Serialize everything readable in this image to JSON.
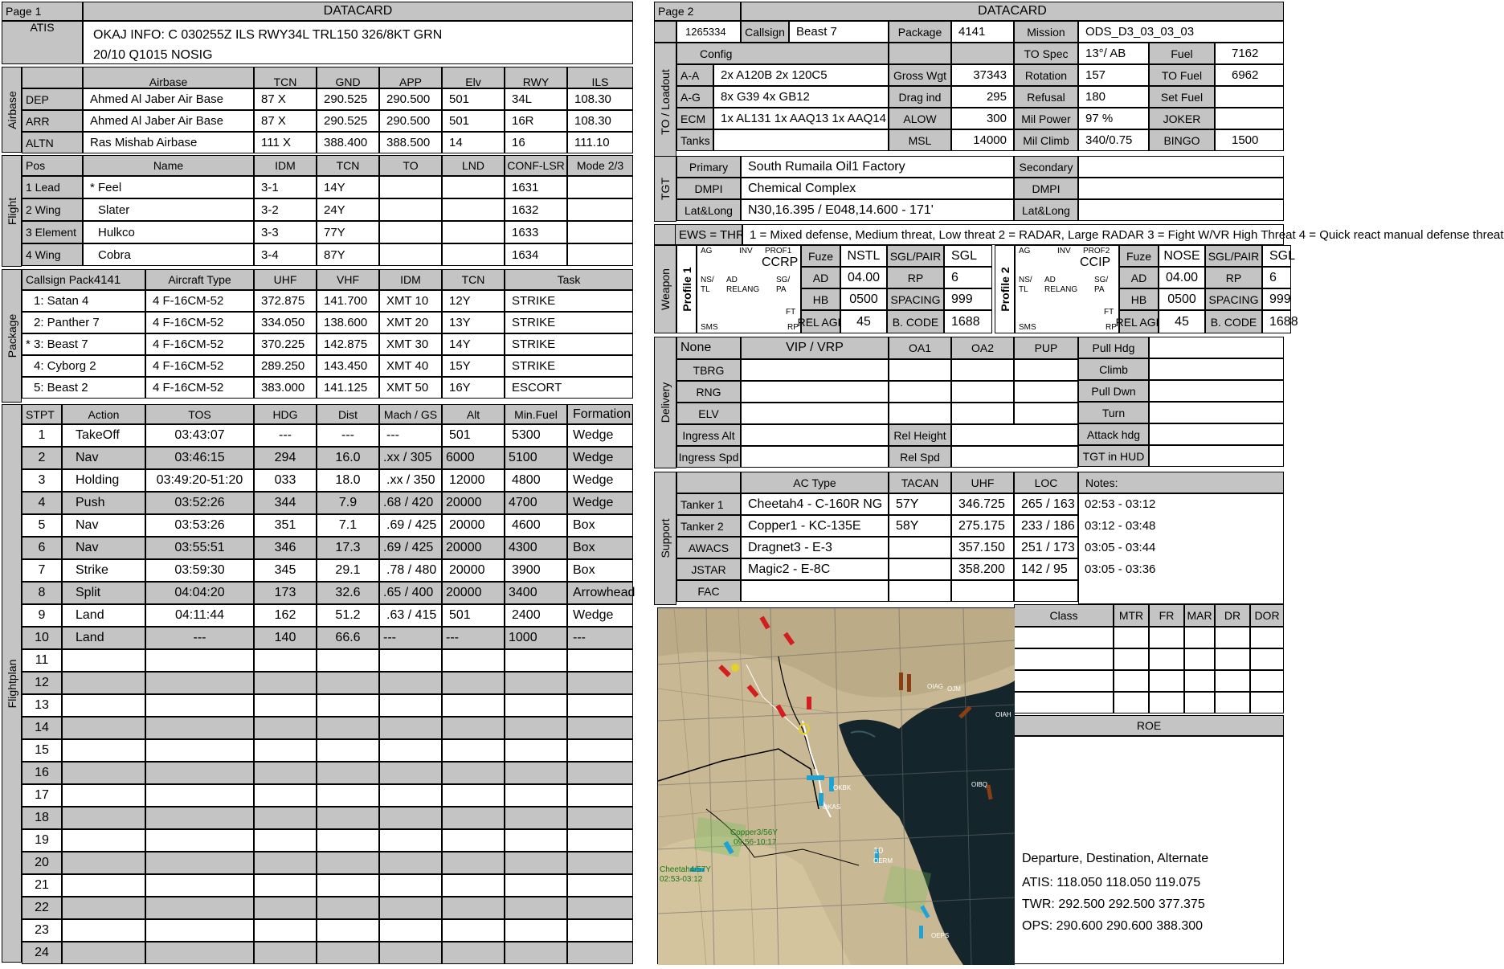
{
  "page1": {
    "page_label": "Page 1",
    "title": "DATACARD",
    "atis": {
      "label": "ATIS",
      "text": "OKAJ INFO: C 030255Z ILS RWY34L TRL150 326/8KT GRN\n20/10 Q1015  NOSIG"
    },
    "airbase": {
      "section_label": "Airbase",
      "headers": [
        "Airbase",
        "TCN",
        "GND",
        "APP",
        "Elv",
        "RWY",
        "ILS"
      ],
      "rows": [
        [
          "DEP",
          "Ahmed Al Jaber Air Base",
          "87 X",
          "290.525",
          "290.500",
          "501",
          "34L",
          "108.30"
        ],
        [
          "ARR",
          "Ahmed Al Jaber Air Base",
          "87 X",
          "290.525",
          "290.500",
          "501",
          "16R",
          "108.30"
        ],
        [
          "ALTN",
          "Ras Mishab Airbase",
          "111 X",
          "388.400",
          "388.500",
          "14",
          "16",
          "111.10"
        ]
      ]
    },
    "flight": {
      "section_label": "Flight",
      "headers": [
        "Pos",
        "Name",
        "IDM",
        "TCN",
        "TO",
        "LND",
        "CONF-LSR",
        "Mode 2/3"
      ],
      "rows": [
        [
          "1 Lead",
          "* Feel",
          "3-1",
          "14Y",
          "",
          "",
          "1631",
          ""
        ],
        [
          "2 Wing",
          "Slater",
          "3-2",
          "24Y",
          "",
          "",
          "1632",
          ""
        ],
        [
          "3 Element",
          "Hulkco",
          "3-3",
          "77Y",
          "",
          "",
          "1633",
          ""
        ],
        [
          "4 Wing",
          "Cobra",
          "3-4",
          "87Y",
          "",
          "",
          "1634",
          ""
        ]
      ]
    },
    "package": {
      "section_label": "Package",
      "callsign_pack_label": "Callsign Pack",
      "callsign_pack_value": "4141",
      "headers": [
        "Aircraft Type",
        "UHF",
        "VHF",
        "IDM",
        "TCN",
        "Task"
      ],
      "rows": [
        [
          "1: Satan 4",
          "4 F-16CM-52",
          "372.875",
          "141.700",
          "XMT 10",
          "12Y",
          "STRIKE"
        ],
        [
          "2: Panther 7",
          "4 F-16CM-52",
          "334.050",
          "138.600",
          "XMT 20",
          "13Y",
          "STRIKE"
        ],
        [
          "* 3: Beast 7",
          "4 F-16CM-52",
          "370.225",
          "142.875",
          "XMT 30",
          "14Y",
          "STRIKE"
        ],
        [
          "4: Cyborg 2",
          "4 F-16CM-52",
          "289.250",
          "143.450",
          "XMT 40",
          "15Y",
          "STRIKE"
        ],
        [
          "5: Beast 2",
          "4 F-16CM-52",
          "383.000",
          "141.125",
          "XMT 50",
          "16Y",
          "ESCORT"
        ]
      ]
    },
    "flightplan": {
      "section_label": "Flightplan",
      "headers": [
        "STPT",
        "Action",
        "TOS",
        "HDG",
        "Dist",
        "Mach / GS",
        "Alt",
        "Min.Fuel",
        "Formation"
      ],
      "rows": [
        [
          "1",
          "TakeOff",
          "03:43:07",
          "---",
          "---",
          "---",
          "501",
          "5300",
          "Wedge"
        ],
        [
          "2",
          "Nav",
          "03:46:15",
          "294",
          "16.0",
          ".xx / 305",
          "6000",
          "5100",
          "Wedge"
        ],
        [
          "3",
          "Holding",
          "03:49:20-51:20",
          "033",
          "18.0",
          ".xx / 350",
          "12000",
          "4800",
          "Wedge"
        ],
        [
          "4",
          "Push",
          "03:52:26",
          "344",
          "7.9",
          ".68 / 420",
          "20000",
          "4700",
          "Wedge"
        ],
        [
          "5",
          "Nav",
          "03:53:26",
          "351",
          "7.1",
          ".69 / 425",
          "20000",
          "4600",
          "Box"
        ],
        [
          "6",
          "Nav",
          "03:55:51",
          "346",
          "17.3",
          ".69 / 425",
          "20000",
          "4300",
          "Box"
        ],
        [
          "7",
          "Strike",
          "03:59:30",
          "345",
          "29.1",
          ".78 / 480",
          "20000",
          "3900",
          "Box"
        ],
        [
          "8",
          "Split",
          "04:04:20",
          "173",
          "32.6",
          ".65 / 400",
          "20000",
          "3400",
          "Arrowhead"
        ],
        [
          "9",
          "Land",
          "04:11:44",
          "162",
          "51.2",
          ".63 / 415",
          "501",
          "2400",
          "Wedge"
        ],
        [
          "10",
          "Land",
          "---",
          "140",
          "66.6",
          "---",
          "---",
          "1000",
          "---"
        ],
        [
          "11",
          "",
          "",
          "",
          "",
          "",
          "",
          "",
          ""
        ],
        [
          "12",
          "",
          "",
          "",
          "",
          "",
          "",
          "",
          ""
        ],
        [
          "13",
          "",
          "",
          "",
          "",
          "",
          "",
          "",
          ""
        ],
        [
          "14",
          "",
          "",
          "",
          "",
          "",
          "",
          "",
          ""
        ],
        [
          "15",
          "",
          "",
          "",
          "",
          "",
          "",
          "",
          ""
        ],
        [
          "16",
          "",
          "",
          "",
          "",
          "",
          "",
          "",
          ""
        ],
        [
          "17",
          "",
          "",
          "",
          "",
          "",
          "",
          "",
          ""
        ],
        [
          "18",
          "",
          "",
          "",
          "",
          "",
          "",
          "",
          ""
        ],
        [
          "19",
          "",
          "",
          "",
          "",
          "",
          "",
          "",
          ""
        ],
        [
          "20",
          "",
          "",
          "",
          "",
          "",
          "",
          "",
          ""
        ],
        [
          "21",
          "",
          "",
          "",
          "",
          "",
          "",
          "",
          ""
        ],
        [
          "22",
          "",
          "",
          "",
          "",
          "",
          "",
          "",
          ""
        ],
        [
          "23",
          "",
          "",
          "",
          "",
          "",
          "",
          "",
          ""
        ],
        [
          "24",
          "",
          "",
          "",
          "",
          "",
          "",
          "",
          ""
        ]
      ]
    }
  },
  "page2": {
    "page_label": "Page 2",
    "title": "DATACARD",
    "header_row": {
      "id": "1265334",
      "callsign_label": "Callsign",
      "callsign": "Beast 7",
      "package_label": "Package",
      "package": "4141",
      "mission_label": "Mission",
      "mission": "ODS_D3_03_03_03"
    },
    "loadout": {
      "section_label": "TO / Loadout",
      "config_label": "Config",
      "rows": [
        {
          "label": "A-A",
          "value": "2x A120B 2x 120C5",
          "k1": "Gross Wgt",
          "v1": "37343"
        },
        {
          "label": "A-G",
          "value": "8x G39 4x GB12",
          "k1": "Drag ind",
          "v1": "295"
        },
        {
          "label": "ECM",
          "value": "1x AL131 1x AAQ13 1x AAQ14",
          "k1": "ALOW",
          "v1": "300"
        },
        {
          "label": "Tanks",
          "value": "",
          "k1": "MSL",
          "v1": "14000"
        }
      ],
      "perf": [
        {
          "k": "TO Spec",
          "v": "13°/ AB",
          "k2": "Fuel",
          "v2": "7162"
        },
        {
          "k": "Rotation",
          "v": "157",
          "k2": "TO Fuel",
          "v2": "6962"
        },
        {
          "k": "Refusal",
          "v": "180",
          "k2": "Set Fuel",
          "v2": ""
        },
        {
          "k": "Mil Power",
          "v": "97 %",
          "k2": "JOKER",
          "v2": ""
        },
        {
          "k": "Mil Climb",
          "v": "340/0.75",
          "k2": "BINGO",
          "v2": "1500"
        }
      ]
    },
    "tgt": {
      "section_label": "TGT",
      "primary_label": "Primary",
      "primary": "South Rumaila Oil1 Factory",
      "dmpi_label": "DMPI",
      "dmpi": "Chemical Complex",
      "latlong_label": "Lat&Long",
      "latlong": "N30,16.395 / E048,14.600 - 171'",
      "secondary_label": "Secondary",
      "dmpi2_label": "DMPI",
      "latlong2_label": "Lat&Long"
    },
    "ews": {
      "label": "EWS = THR",
      "text": "1 = Mixed defense, Medium threat, Low threat  2 = RADAR, Large RADAR  3 = Fight W/VR High Threat  4 = Quick react manual defense threat"
    },
    "weapon": {
      "section_label": "Weapon",
      "profiles": [
        {
          "label": "Profile 1",
          "mode": "CCRP",
          "prof": "PROF1",
          "fuze": "NSTL",
          "sgl_pair": "SGL",
          "ad": "04.00",
          "rp": "6",
          "hb": "0500",
          "spacing": "999",
          "rel_agl": "45",
          "b_code": "1688"
        },
        {
          "label": "Profile 2",
          "mode": "CCIP",
          "prof": "PROF2",
          "fuze": "NOSE",
          "sgl_pair": "SGL",
          "ad": "04.00",
          "rp": "6",
          "hb": "0500",
          "spacing": "999",
          "rel_agl": "45",
          "b_code": "1688"
        }
      ],
      "labels": {
        "fuze": "Fuze",
        "sgl_pair": "SGL/PAIR",
        "ad": "AD",
        "rp": "RP",
        "hb": "HB",
        "spacing": "SPACING",
        "rel_agl": "REL AGL",
        "b_code": "B. CODE"
      },
      "mfd": {
        "ag": "AG",
        "inv": "INV",
        "ns": "NS/",
        "tl": "TL",
        "ad": "AD",
        "relang": "RELANG",
        "sg": "SG/",
        "pa": "PA",
        "ft": "FT",
        "sms": "SMS",
        "rp": "RP"
      }
    },
    "delivery": {
      "section_label": "Delivery",
      "mode": "None",
      "vip_label": "VIP / VRP",
      "oa1": "OA1",
      "oa2": "OA2",
      "pup": "PUP",
      "rows": [
        "TBRG",
        "RNG",
        "ELV",
        "Ingress Alt",
        "Ingress Spd"
      ],
      "rel_height": "Rel Height",
      "rel_spd": "Rel Spd",
      "right_rows": [
        "Pull Hdg",
        "Climb",
        "Pull Dwn",
        "Turn",
        "Attack hdg",
        "TGT in HUD"
      ]
    },
    "support": {
      "section_label": "Support",
      "headers": [
        "AC Type",
        "TACAN",
        "UHF",
        "LOC"
      ],
      "notes_label": "Notes:",
      "rows": [
        [
          "Tanker 1",
          "Cheetah4 - C-160R NG",
          "57Y",
          "346.725",
          "265 / 163",
          "02:53 - 03:12"
        ],
        [
          "Tanker 2",
          "Copper1 - KC-135E",
          "58Y",
          "275.175",
          "233 / 186",
          "03:12 - 03:48"
        ],
        [
          "AWACS",
          "Dragnet3 - E-3",
          "",
          "357.150",
          "251 / 173",
          "03:05 - 03:44"
        ],
        [
          "JSTAR",
          "Magic2 - E-8C",
          "",
          "358.200",
          "142 / 95",
          "03:05 - 03:36"
        ],
        [
          "FAC",
          "",
          "",
          "",
          "",
          ""
        ]
      ]
    },
    "threats": {
      "headers": [
        "Class",
        "MTR",
        "FR",
        "MAR",
        "DR",
        "DOR"
      ]
    },
    "roe_label": "ROE",
    "map_labels": [
      "Copper3/56Y",
      "09:56-10:17",
      "Cheetah4/57Y",
      "02:53-03:12",
      "10",
      "OERM",
      "OKBK",
      "OIBQ",
      "OKAS",
      "OEPS",
      "OJM",
      "OIAG",
      "OIAH"
    ],
    "freqs": {
      "title": "Departure, Destination, Alternate",
      "atis": "ATIS: 118.050  118.050  119.075",
      "twr": "TWR: 292.500  292.500  377.375",
      "ops": "OPS: 290.600  290.600  388.300"
    }
  }
}
